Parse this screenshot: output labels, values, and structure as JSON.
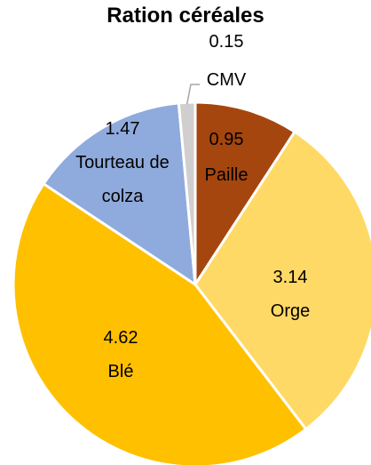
{
  "chart_data": {
    "type": "pie",
    "title": "Ration céréales",
    "categories": [
      "Paille",
      "Orge",
      "Blé",
      "Tourteau de colza",
      "CMV"
    ],
    "values": [
      0.95,
      3.14,
      4.62,
      1.47,
      0.15
    ],
    "colors": [
      "#a5460e",
      "#ffd966",
      "#ffc000",
      "#8faadc",
      "#d0cece"
    ]
  }
}
